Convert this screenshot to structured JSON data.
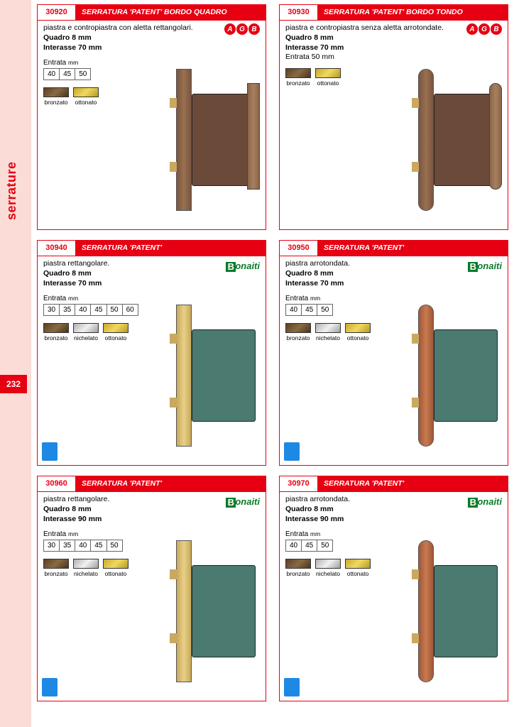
{
  "page": {
    "side_label": "serrature",
    "page_number": "232"
  },
  "swatch_colors": {
    "bronzato": "linear-gradient(135deg,#5a4028,#8a6a40,#4a3420)",
    "ottonato": "linear-gradient(135deg,#c8a830,#f0d860,#b89820)",
    "nichelato": "linear-gradient(135deg,#b0b0b0,#f0f0f0,#a0a0a0)"
  },
  "products": [
    {
      "code": "30920",
      "title": "SERRATURA 'PATENT' BORDO QUADRO",
      "desc": "piastra e contropiastra con aletta rettangolari.",
      "specs": [
        "Quadro 8 mm",
        "Interasse 70 mm"
      ],
      "entrata_label": "Entrata",
      "entrata_mm": "mm",
      "entrata": [
        "40",
        "45",
        "50"
      ],
      "swatches": [
        "bronzato",
        "ottonato"
      ],
      "brand": "AGB",
      "img": {
        "plate": "brown square",
        "body": "brown",
        "strike": "square"
      }
    },
    {
      "code": "30930",
      "title": "SERRATURA 'PATENT' BORDO TONDO",
      "desc": "piastra e contropiastra senza aletta arrotondate.",
      "specs": [
        "Quadro 8 mm",
        "Interasse 70 mm",
        "Entrata 50 mm"
      ],
      "entrata_label": "",
      "entrata_mm": "",
      "entrata": [],
      "swatches": [
        "bronzato",
        "ottonato"
      ],
      "brand": "AGB",
      "img": {
        "plate": "brown round",
        "body": "brown",
        "strike": "round"
      }
    },
    {
      "code": "30940",
      "title": "SERRATURA 'PATENT'",
      "desc": "piastra rettangolare.",
      "specs": [
        "Quadro 8 mm",
        "Interasse 70 mm"
      ],
      "entrata_label": "Entrata",
      "entrata_mm": "mm",
      "entrata": [
        "30",
        "35",
        "40",
        "45",
        "50",
        "60"
      ],
      "swatches": [
        "bronzato",
        "nichelato",
        "ottonato"
      ],
      "brand": "Bonaiti",
      "img": {
        "plate": "gold square",
        "body": "teal",
        "strike": ""
      },
      "blue_tag": true
    },
    {
      "code": "30950",
      "title": "SERRATURA 'PATENT'",
      "desc": "piastra arrotondata.",
      "specs": [
        "Quadro 8 mm",
        "Interasse 70 mm"
      ],
      "entrata_label": "Entrata",
      "entrata_mm": "mm",
      "entrata": [
        "40",
        "45",
        "50"
      ],
      "swatches": [
        "bronzato",
        "nichelato",
        "ottonato"
      ],
      "brand": "Bonaiti",
      "img": {
        "plate": "copper round",
        "body": "teal",
        "strike": ""
      },
      "blue_tag": true
    },
    {
      "code": "30960",
      "title": "SERRATURA 'PATENT'",
      "desc": "piastra rettangolare.",
      "specs": [
        "Quadro 8 mm",
        "Interasse 90 mm"
      ],
      "entrata_label": "Entrata",
      "entrata_mm": "mm",
      "entrata": [
        "30",
        "35",
        "40",
        "45",
        "50"
      ],
      "swatches": [
        "bronzato",
        "nichelato",
        "ottonato"
      ],
      "brand": "Bonaiti",
      "img": {
        "plate": "gold square",
        "body": "teal",
        "strike": ""
      },
      "blue_tag": true
    },
    {
      "code": "30970",
      "title": "SERRATURA 'PATENT'",
      "desc": "piastra arrotondata.",
      "specs": [
        "Quadro 8 mm",
        "Interasse 90 mm"
      ],
      "entrata_label": "Entrata",
      "entrata_mm": "mm",
      "entrata": [
        "40",
        "45",
        "50"
      ],
      "swatches": [
        "bronzato",
        "nichelato",
        "ottonato"
      ],
      "brand": "Bonaiti",
      "img": {
        "plate": "copper round",
        "body": "teal",
        "strike": ""
      },
      "blue_tag": true
    }
  ]
}
